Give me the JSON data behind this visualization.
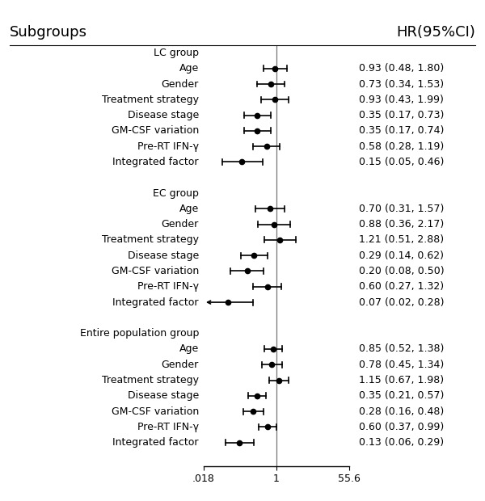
{
  "title_left": "Subgroups",
  "title_right": "HR(95%CI)",
  "x_min": 0.018,
  "x_max": 55.6,
  "x_ticks": [
    0.018,
    1,
    55.6
  ],
  "x_tick_labels": [
    ".018",
    "1",
    "55.6"
  ],
  "ref_line": 1.0,
  "groups": [
    {
      "header": "LC group",
      "rows": [
        {
          "label": "Age",
          "hr": 0.93,
          "lo": 0.48,
          "hi": 1.8,
          "text": "0.93 (0.48, 1.80)",
          "arrow": false
        },
        {
          "label": "Gender",
          "hr": 0.73,
          "lo": 0.34,
          "hi": 1.53,
          "text": "0.73 (0.34, 1.53)",
          "arrow": false
        },
        {
          "label": "Treatment strategy",
          "hr": 0.93,
          "lo": 0.43,
          "hi": 1.99,
          "text": "0.93 (0.43, 1.99)",
          "arrow": false
        },
        {
          "label": "Disease stage",
          "hr": 0.35,
          "lo": 0.17,
          "hi": 0.73,
          "text": "0.35 (0.17, 0.73)",
          "arrow": false
        },
        {
          "label": "GM-CSF variation",
          "hr": 0.35,
          "lo": 0.17,
          "hi": 0.74,
          "text": "0.35 (0.17, 0.74)",
          "arrow": false
        },
        {
          "label": "Pre-RT IFN-γ",
          "hr": 0.58,
          "lo": 0.28,
          "hi": 1.19,
          "text": "0.58 (0.28, 1.19)",
          "arrow": false
        },
        {
          "label": "Integrated factor",
          "hr": 0.15,
          "lo": 0.05,
          "hi": 0.46,
          "text": "0.15 (0.05, 0.46)",
          "arrow": false
        }
      ]
    },
    {
      "header": "EC group",
      "rows": [
        {
          "label": "Age",
          "hr": 0.7,
          "lo": 0.31,
          "hi": 1.57,
          "text": "0.70 (0.31, 1.57)",
          "arrow": false
        },
        {
          "label": "Gender",
          "hr": 0.88,
          "lo": 0.36,
          "hi": 2.17,
          "text": "0.88 (0.36, 2.17)",
          "arrow": false
        },
        {
          "label": "Treatment strategy",
          "hr": 1.21,
          "lo": 0.51,
          "hi": 2.88,
          "text": "1.21 (0.51, 2.88)",
          "arrow": false
        },
        {
          "label": "Disease stage",
          "hr": 0.29,
          "lo": 0.14,
          "hi": 0.62,
          "text": "0.29 (0.14, 0.62)",
          "arrow": false
        },
        {
          "label": "GM-CSF variation",
          "hr": 0.2,
          "lo": 0.08,
          "hi": 0.5,
          "text": "0.20 (0.08, 0.50)",
          "arrow": false
        },
        {
          "label": "Pre-RT IFN-γ",
          "hr": 0.6,
          "lo": 0.27,
          "hi": 1.32,
          "text": "0.60 (0.27, 1.32)",
          "arrow": false
        },
        {
          "label": "Integrated factor",
          "hr": 0.07,
          "lo": 0.02,
          "hi": 0.28,
          "text": "0.07 (0.02, 0.28)",
          "arrow": true
        }
      ]
    },
    {
      "header": "Entire population group",
      "rows": [
        {
          "label": "Age",
          "hr": 0.85,
          "lo": 0.52,
          "hi": 1.38,
          "text": "0.85 (0.52, 1.38)",
          "arrow": false
        },
        {
          "label": "Gender",
          "hr": 0.78,
          "lo": 0.45,
          "hi": 1.34,
          "text": "0.78 (0.45, 1.34)",
          "arrow": false
        },
        {
          "label": "Treatment strategy",
          "hr": 1.15,
          "lo": 0.67,
          "hi": 1.98,
          "text": "1.15 (0.67, 1.98)",
          "arrow": false
        },
        {
          "label": "Disease stage",
          "hr": 0.35,
          "lo": 0.21,
          "hi": 0.57,
          "text": "0.35 (0.21, 0.57)",
          "arrow": false
        },
        {
          "label": "GM-CSF variation",
          "hr": 0.28,
          "lo": 0.16,
          "hi": 0.48,
          "text": "0.28 (0.16, 0.48)",
          "arrow": false
        },
        {
          "label": "Pre-RT IFN-γ",
          "hr": 0.6,
          "lo": 0.37,
          "hi": 0.99,
          "text": "0.60 (0.37, 0.99)",
          "arrow": false
        },
        {
          "label": "Integrated factor",
          "hr": 0.13,
          "lo": 0.06,
          "hi": 0.29,
          "text": "0.13 (0.06, 0.29)",
          "arrow": false
        }
      ]
    }
  ],
  "plot_color": "#000000",
  "text_color": "#000000",
  "bg_color": "#ffffff",
  "font_size": 9.0,
  "header_font_size": 13,
  "marker_size": 4.5,
  "line_width": 1.2,
  "cap_size": 0.18
}
